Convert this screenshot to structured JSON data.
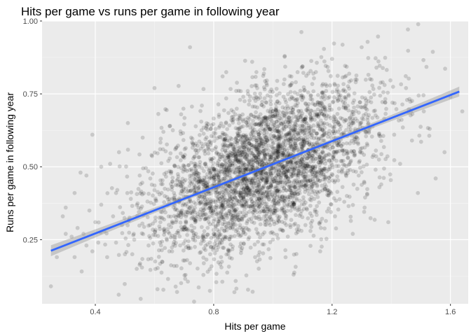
{
  "chart_data": {
    "type": "scatter",
    "title": "Hits per game vs runs per game in following year",
    "xlabel": "Hits per game",
    "ylabel": "Runs per game in following year",
    "xlim": [
      0.22,
      1.66
    ],
    "ylim": [
      0.03,
      1.0
    ],
    "x_ticks": [
      0.4,
      0.8,
      1.2,
      1.6
    ],
    "x_tick_labels": [
      "0.4",
      "0.8",
      "1.2",
      "1.6"
    ],
    "y_ticks": [
      0.25,
      0.5,
      0.75,
      1.0
    ],
    "y_tick_labels": [
      "0.25",
      "0.50",
      "0.75",
      "1.00"
    ],
    "grid": true,
    "point_alpha": 0.15,
    "point_color": "#000000",
    "panel_color": "#ebebeb",
    "fit_line": {
      "method": "linear",
      "color": "#3366ff",
      "band_color": "#999999",
      "x": [
        0.25,
        1.63
      ],
      "y": [
        0.212,
        0.758
      ]
    },
    "points": [
      [
        0.25,
        0.09
      ],
      [
        0.27,
        0.19
      ],
      [
        0.29,
        0.33
      ],
      [
        0.3,
        0.36
      ],
      [
        0.3,
        0.27
      ],
      [
        0.32,
        0.26
      ],
      [
        0.33,
        0.19
      ],
      [
        0.33,
        0.41
      ],
      [
        0.34,
        0.29
      ],
      [
        0.35,
        0.48
      ],
      [
        0.36,
        0.27
      ],
      [
        0.37,
        0.23
      ],
      [
        0.37,
        0.47
      ],
      [
        0.38,
        0.35
      ],
      [
        0.39,
        0.61
      ],
      [
        0.39,
        0.21
      ],
      [
        0.4,
        0.31
      ],
      [
        0.41,
        0.24
      ],
      [
        0.42,
        0.5
      ],
      [
        0.42,
        0.37
      ],
      [
        0.43,
        0.28
      ],
      [
        0.44,
        0.19
      ],
      [
        0.45,
        0.51
      ],
      [
        0.46,
        0.33
      ],
      [
        0.47,
        0.41
      ],
      [
        0.47,
        0.24
      ],
      [
        0.48,
        0.55
      ],
      [
        0.49,
        0.3
      ],
      [
        0.5,
        0.2
      ],
      [
        0.51,
        0.65
      ],
      [
        0.52,
        0.39
      ],
      [
        0.53,
        0.27
      ],
      [
        0.54,
        0.15
      ],
      [
        0.55,
        0.47
      ],
      [
        0.56,
        0.6
      ],
      [
        0.57,
        0.34
      ],
      [
        0.58,
        0.23
      ],
      [
        0.59,
        0.54
      ],
      [
        0.6,
        0.42
      ],
      [
        0.6,
        0.77
      ],
      [
        0.61,
        0.08
      ],
      [
        0.62,
        0.31
      ],
      [
        0.63,
        0.62
      ],
      [
        0.64,
        0.48
      ],
      [
        0.65,
        0.21
      ],
      [
        0.66,
        0.39
      ],
      [
        0.67,
        0.56
      ],
      [
        0.68,
        0.28
      ],
      [
        0.69,
        0.68
      ],
      [
        0.7,
        0.45
      ],
      [
        0.71,
        0.18
      ],
      [
        0.72,
        0.36
      ],
      [
        0.72,
        0.91
      ],
      [
        0.73,
        0.58
      ],
      [
        0.74,
        0.27
      ],
      [
        0.75,
        0.5
      ],
      [
        0.76,
        0.71
      ],
      [
        0.77,
        0.32
      ],
      [
        0.78,
        0.43
      ],
      [
        0.78,
        0.14
      ],
      [
        0.79,
        0.63
      ],
      [
        0.8,
        0.38
      ],
      [
        0.81,
        0.55
      ],
      [
        0.82,
        0.24
      ],
      [
        0.83,
        0.81
      ],
      [
        0.84,
        0.47
      ],
      [
        0.85,
        0.34
      ],
      [
        0.86,
        0.66
      ],
      [
        0.87,
        0.07
      ],
      [
        0.88,
        0.52
      ],
      [
        0.89,
        0.4
      ],
      [
        0.9,
        0.74
      ],
      [
        0.91,
        0.29
      ],
      [
        0.92,
        0.58
      ],
      [
        0.93,
        0.45
      ],
      [
        0.93,
        0.86
      ],
      [
        0.94,
        0.19
      ],
      [
        0.95,
        0.62
      ],
      [
        0.96,
        0.37
      ],
      [
        0.97,
        0.51
      ],
      [
        0.98,
        0.78
      ],
      [
        0.99,
        0.43
      ],
      [
        1.0,
        0.25
      ],
      [
        1.01,
        0.6
      ],
      [
        1.02,
        0.69
      ],
      [
        1.03,
        0.35
      ],
      [
        1.04,
        0.88
      ],
      [
        1.05,
        0.49
      ],
      [
        1.06,
        0.57
      ],
      [
        1.07,
        0.13
      ],
      [
        1.08,
        0.73
      ],
      [
        1.09,
        0.42
      ],
      [
        1.1,
        0.64
      ],
      [
        1.11,
        0.3
      ],
      [
        1.12,
        0.82
      ],
      [
        1.13,
        0.53
      ],
      [
        1.14,
        0.39
      ],
      [
        1.15,
        0.68
      ],
      [
        1.16,
        0.21
      ],
      [
        1.17,
        0.59
      ],
      [
        1.18,
        0.76
      ],
      [
        1.19,
        0.45
      ],
      [
        1.2,
        0.87
      ],
      [
        1.21,
        0.33
      ],
      [
        1.22,
        0.62
      ],
      [
        1.23,
        0.52
      ],
      [
        1.24,
        0.71
      ],
      [
        1.25,
        0.4
      ],
      [
        1.26,
        0.58
      ],
      [
        1.27,
        0.27
      ],
      [
        1.28,
        0.79
      ],
      [
        1.29,
        0.47
      ],
      [
        1.3,
        0.91
      ],
      [
        1.31,
        0.36
      ],
      [
        1.32,
        0.66
      ],
      [
        1.34,
        0.54
      ],
      [
        1.35,
        0.84
      ],
      [
        1.36,
        0.43
      ],
      [
        1.38,
        0.72
      ],
      [
        1.39,
        0.31
      ],
      [
        1.41,
        0.61
      ],
      [
        1.43,
        0.51
      ],
      [
        1.45,
        0.77
      ],
      [
        1.47,
        0.59
      ],
      [
        1.49,
        0.41
      ],
      [
        1.51,
        0.69
      ],
      [
        1.53,
        0.63
      ],
      [
        1.55,
        0.46
      ],
      [
        1.58,
        0.55
      ],
      [
        1.6,
        0.74
      ],
      [
        1.64,
        0.69
      ]
    ],
    "cloud": {
      "description_free": true,
      "n": 3600,
      "x_mean": 0.97,
      "x_sd": 0.19,
      "noise_sd": 0.125,
      "slope": 0.396,
      "intercept": 0.113,
      "seed": 20240611
    }
  }
}
